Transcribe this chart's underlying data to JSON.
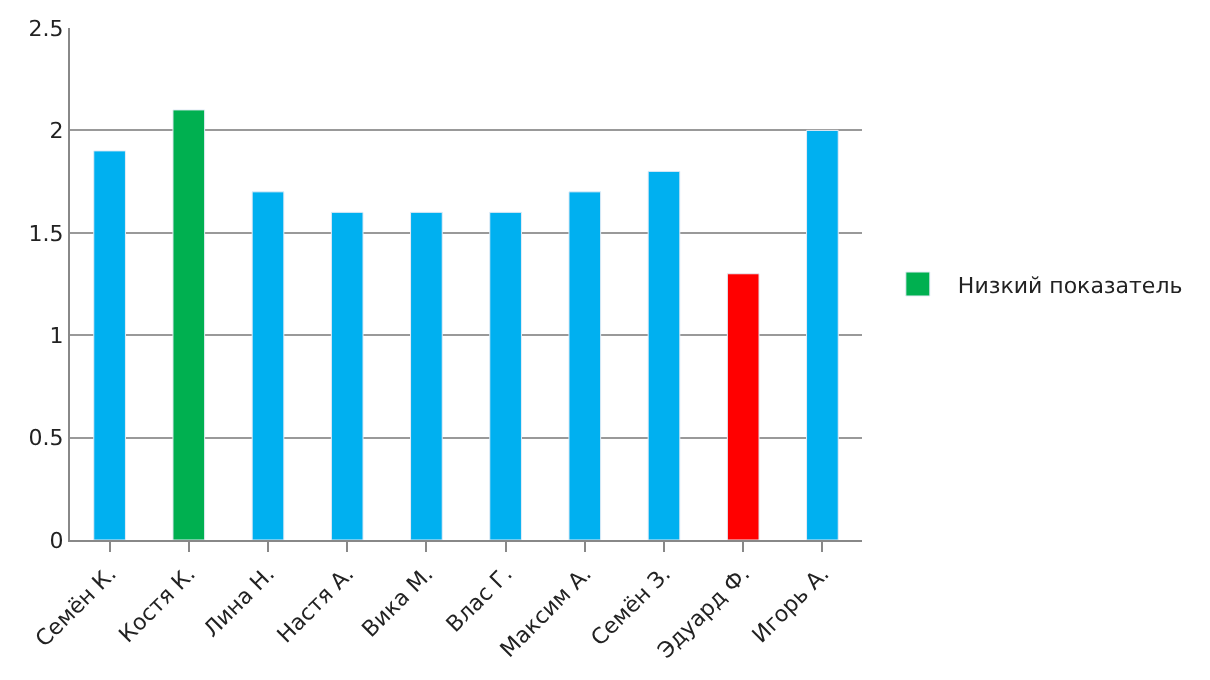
{
  "chart_data": {
    "type": "bar",
    "categories": [
      "Семён К.",
      "Костя К.",
      "Лина Н.",
      "Настя А.",
      "Вика М.",
      "Влас Г.",
      "Максим А.",
      "Семён З.",
      "Эдуард Ф.",
      "Игорь А."
    ],
    "series": [
      {
        "name": "Низкий показатель",
        "color": "#00b050",
        "colors": [
          "#00b0f0",
          "#00b050",
          "#00b0f0",
          "#00b0f0",
          "#00b0f0",
          "#00b0f0",
          "#00b0f0",
          "#00b0f0",
          "#ff0000",
          "#00b0f0"
        ],
        "values": [
          1.9,
          2.1,
          1.7,
          1.6,
          1.6,
          1.6,
          1.7,
          1.8,
          1.3,
          2.0
        ]
      }
    ],
    "ylim": [
      0,
      2.5
    ],
    "yticks": [
      0,
      0.5,
      1,
      1.5,
      2,
      2.5
    ],
    "grid": "y",
    "legend": "right"
  }
}
